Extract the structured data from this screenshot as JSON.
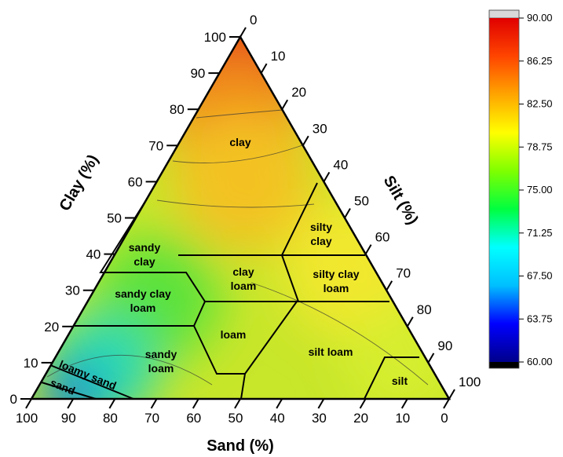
{
  "chart_data": {
    "type": "ternary-contour",
    "axes": {
      "sand": {
        "label": "Sand (%)",
        "ticks": [
          "100",
          "90",
          "80",
          "70",
          "60",
          "50",
          "40",
          "30",
          "20",
          "10",
          "0"
        ]
      },
      "clay": {
        "label": "Clay (%)",
        "ticks": [
          "0",
          "10",
          "20",
          "30",
          "40",
          "50",
          "60",
          "70",
          "80",
          "90",
          "100"
        ]
      },
      "silt": {
        "label": "Silt (%)",
        "ticks": [
          "0",
          "10",
          "20",
          "30",
          "40",
          "50",
          "60",
          "70",
          "80",
          "90",
          "100"
        ]
      }
    },
    "regions": [
      {
        "lines": [
          "clay"
        ]
      },
      {
        "lines": [
          "silty",
          "clay"
        ]
      },
      {
        "lines": [
          "sandy",
          "clay"
        ]
      },
      {
        "lines": [
          "clay",
          "loam"
        ]
      },
      {
        "lines": [
          "silty  clay",
          "loam"
        ]
      },
      {
        "lines": [
          "sandy clay",
          "loam"
        ]
      },
      {
        "lines": [
          "loam"
        ]
      },
      {
        "lines": [
          "sandy",
          "loam"
        ]
      },
      {
        "lines": [
          "silt loam"
        ]
      },
      {
        "lines": [
          "loamy sand"
        ]
      },
      {
        "lines": [
          "sand"
        ]
      },
      {
        "lines": [
          "silt"
        ]
      }
    ],
    "colorbar": {
      "range": [
        60.0,
        90.0
      ],
      "ticks": [
        "90.00",
        "86.25",
        "82.50",
        "78.75",
        "75.00",
        "71.25",
        "67.50",
        "63.75",
        "60.00"
      ],
      "colors": [
        "#00008b",
        "#0000ff",
        "#00bfff",
        "#00ffff",
        "#00ff40",
        "#7fff00",
        "#ffff00",
        "#ffa500",
        "#ff4500",
        "#e00000"
      ]
    },
    "value_field_samples": [
      {
        "sand": 0,
        "clay": 100,
        "silt": 0,
        "value": 89
      },
      {
        "sand": 10,
        "clay": 80,
        "silt": 10,
        "value": 85
      },
      {
        "sand": 20,
        "clay": 60,
        "silt": 20,
        "value": 81
      },
      {
        "sand": 50,
        "clay": 35,
        "silt": 15,
        "value": 78
      },
      {
        "sand": 70,
        "clay": 25,
        "silt": 5,
        "value": 75
      },
      {
        "sand": 70,
        "clay": 10,
        "silt": 20,
        "value": 71
      },
      {
        "sand": 90,
        "clay": 3,
        "silt": 7,
        "value": 63
      },
      {
        "sand": 10,
        "clay": 10,
        "silt": 80,
        "value": 80
      }
    ]
  }
}
